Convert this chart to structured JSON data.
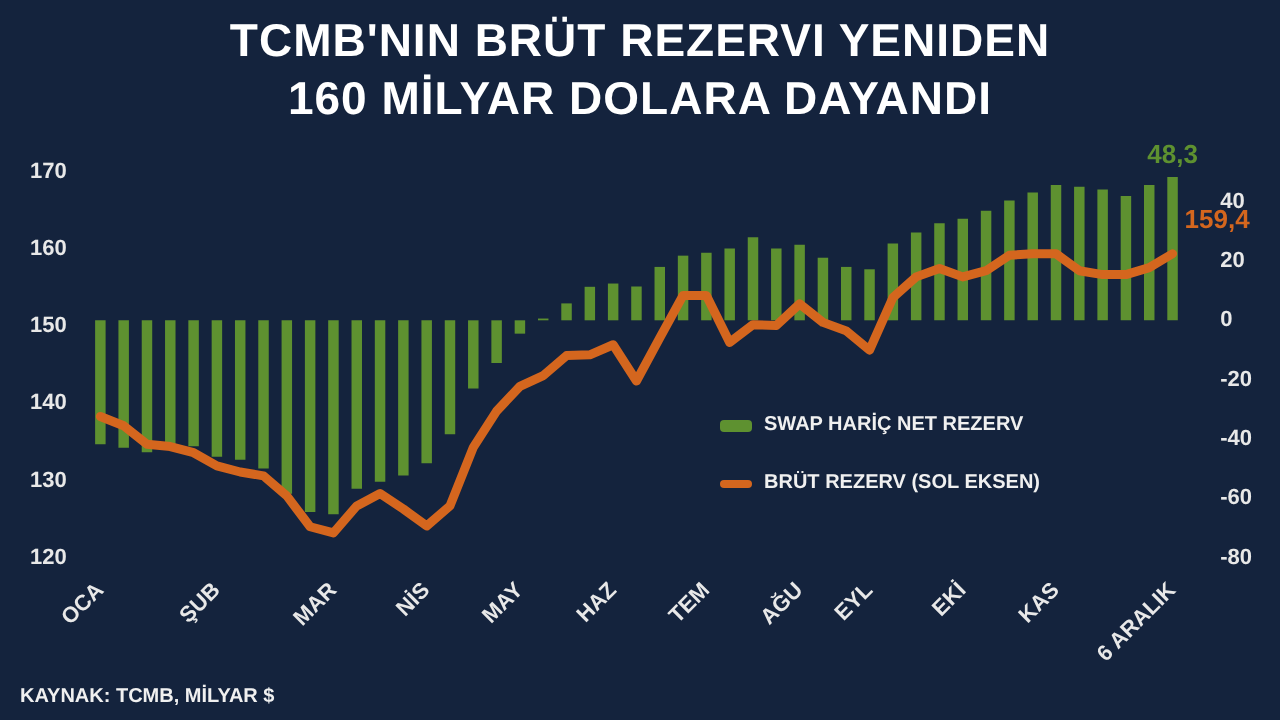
{
  "chart_data": {
    "type": "bar",
    "title": "TCMB'NIN BRÜT REZERVI YENIDEN\n160 MİLYAR DOLARA DAYANDI",
    "categories": [
      "OCA",
      null,
      null,
      null,
      null,
      "ŞUB",
      null,
      null,
      null,
      null,
      "MAR",
      null,
      null,
      null,
      "NİS",
      null,
      null,
      null,
      "MAY",
      null,
      null,
      null,
      "HAZ",
      null,
      null,
      null,
      "TEM",
      null,
      null,
      null,
      "AĞU",
      null,
      null,
      "EYL",
      null,
      null,
      null,
      "EKİ",
      null,
      null,
      null,
      "KAS",
      null,
      null,
      null,
      null,
      "6 ARALIK"
    ],
    "series": [
      {
        "name": "SWAP HARİÇ NET REZERV",
        "axis": "y2",
        "color": "#5e9130",
        "values": [
          -41.8,
          -43,
          -44.5,
          -43,
          -42.5,
          -46,
          -47,
          -50,
          -58.5,
          -64.6,
          -65.4,
          -56.8,
          -54.4,
          -52.3,
          -48.2,
          -38.4,
          -23,
          -14.4,
          -4.5,
          0.6,
          5.7,
          11.3,
          12.4,
          11.4,
          18,
          21.8,
          22.8,
          24.2,
          28,
          24.2,
          25.5,
          21.1,
          18,
          17.2,
          25.9,
          29.6,
          32.7,
          34.2,
          36.9,
          40.4,
          43.1,
          45.6,
          45,
          44.1,
          41.9,
          45.6,
          48.3
        ],
        "value_labels": [
          null,
          null,
          null,
          null,
          null,
          null,
          null,
          null,
          null,
          null,
          null,
          null,
          null,
          null,
          null,
          null,
          null,
          null,
          null,
          null,
          null,
          null,
          null,
          null,
          null,
          null,
          null,
          null,
          null,
          null,
          null,
          null,
          null,
          null,
          null,
          null,
          null,
          null,
          null,
          null,
          null,
          null,
          null,
          null,
          null,
          null,
          "48,3"
        ]
      },
      {
        "name": "BRÜT REZERV (SOL EKSEN)",
        "type": "line",
        "axis": "y",
        "color": "#d4661e",
        "values": [
          138.3,
          137.1,
          134.7,
          134.4,
          133.6,
          131.9,
          131.1,
          130.6,
          128,
          124,
          123.2,
          126.7,
          128.3,
          126.3,
          124.1,
          126.7,
          134.3,
          139,
          142.2,
          143.6,
          146.2,
          146.3,
          147.6,
          142.9,
          148.5,
          154,
          154,
          147.9,
          150.2,
          150.1,
          152.9,
          150.5,
          149.4,
          146.9,
          153.7,
          156.4,
          157.5,
          156.4,
          157.2,
          159.2,
          159.4,
          159.4,
          157.2,
          156.7,
          156.7,
          157.6,
          159.4
        ],
        "value_labels": [
          null,
          null,
          null,
          null,
          null,
          null,
          null,
          null,
          null,
          null,
          null,
          null,
          null,
          null,
          null,
          null,
          null,
          null,
          null,
          null,
          null,
          null,
          null,
          null,
          null,
          null,
          null,
          null,
          null,
          null,
          null,
          null,
          null,
          null,
          null,
          null,
          null,
          null,
          null,
          null,
          null,
          null,
          null,
          null,
          null,
          null,
          "159,4"
        ]
      }
    ],
    "ylim": [
      120,
      170
    ],
    "yticks": [
      120,
      130,
      140,
      150,
      160,
      170
    ],
    "y2lim": [
      -80,
      50
    ],
    "y2ticks": [
      -80,
      -60,
      -40,
      -20,
      0,
      20,
      40
    ],
    "grid": false,
    "legend": "bottom right",
    "marker": "none",
    "line_style": "solid",
    "annotations": [
      "KAYNAK: TCMB, MİLYAR $"
    ]
  }
}
